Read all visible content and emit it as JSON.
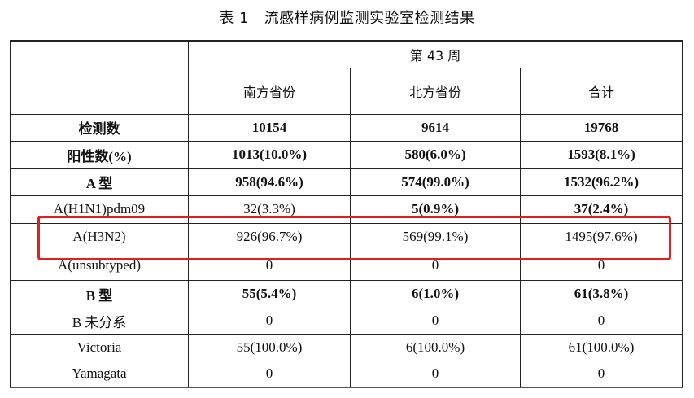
{
  "title": "表 1　流感样病例监测实验室检测结果",
  "header": {
    "week": "第 43 周",
    "columns": [
      "南方省份",
      "北方省份",
      "合计"
    ]
  },
  "rows": [
    {
      "label": "检测数",
      "bold": true,
      "values": [
        "10154",
        "9614",
        "19768"
      ]
    },
    {
      "label": "阳性数(%)",
      "bold": true,
      "values": [
        "1013(10.0%)",
        "580(6.0%)",
        "1593(8.1%)"
      ]
    },
    {
      "label": "A 型",
      "bold": true,
      "values": [
        "958(94.6%)",
        "574(99.0%)",
        "1532(96.2%)"
      ]
    },
    {
      "label": "A(H1N1)pdm09",
      "bold": false,
      "values": [
        "32(3.3%)",
        "5(0.9%)",
        "37(2.4%)"
      ]
    },
    {
      "label": "A(H3N2)",
      "bold": false,
      "highlighted": true,
      "values": [
        "926(96.7%)",
        "569(99.1%)",
        "1495(97.6%)"
      ]
    },
    {
      "label": "A(unsubtyped)",
      "bold": false,
      "values": [
        "0",
        "0",
        "0"
      ]
    },
    {
      "label": "B 型",
      "bold": true,
      "values": [
        "55(5.4%)",
        "6(1.0%)",
        "61(3.8%)"
      ]
    },
    {
      "label": "B 未分系",
      "bold": false,
      "values": [
        "0",
        "0",
        "0"
      ]
    },
    {
      "label": "Victoria",
      "bold": false,
      "values": [
        "55(100.0%)",
        "6(100.0%)",
        "61(100.0%)"
      ]
    },
    {
      "label": "Yamagata",
      "bold": false,
      "values": [
        "0",
        "0",
        "0"
      ]
    }
  ],
  "highlight_color": "#e02020"
}
